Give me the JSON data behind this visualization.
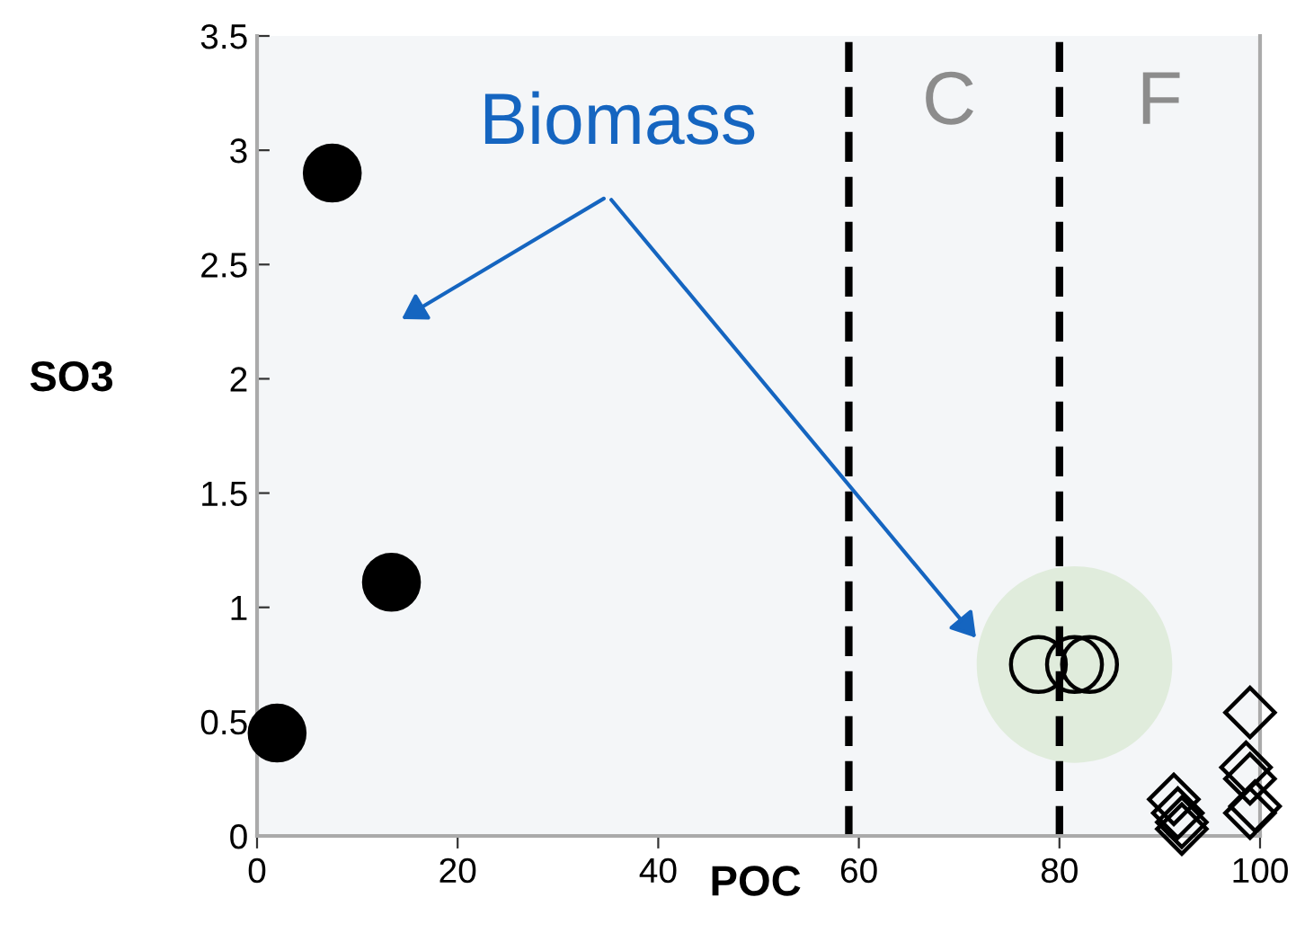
{
  "chart_data": {
    "type": "scatter",
    "xlabel": "POC",
    "ylabel": "SO3",
    "xlim": [
      0,
      100
    ],
    "ylim": [
      0,
      3.5
    ],
    "xticks": [
      0,
      20,
      40,
      60,
      80,
      100
    ],
    "yticks": [
      0,
      0.5,
      1,
      1.5,
      2,
      2.5,
      3,
      3.5
    ],
    "grid": false,
    "series": [
      {
        "color": "#000000",
        "marker": "circle",
        "x": [
          2,
          7.5,
          13.4
        ],
        "values": [
          0.45,
          2.9,
          1.11
        ]
      },
      {
        "color": "#000000",
        "marker": "circle",
        "x": [
          77.9,
          81.5,
          83
        ],
        "values": [
          0.75,
          0.75,
          0.75
        ]
      },
      {
        "color": "#000000",
        "marker": "diamond",
        "x": [
          91.4,
          91.8,
          92.2,
          92.2,
          99,
          98.6,
          99,
          99.5,
          99
        ],
        "values": [
          0.16,
          0.1,
          0.06,
          0.03,
          0.54,
          0.3,
          0.25,
          0.13,
          0.1
        ]
      }
    ],
    "ref_lines": [
      {
        "axis": "x",
        "value": 59,
        "label": "C",
        "color": "#000000",
        "line_style": "dashed"
      },
      {
        "axis": "x",
        "value": 80,
        "label": "F",
        "color": "#000000",
        "line_style": "dashed"
      }
    ],
    "annotations": [
      "Biomass"
    ]
  }
}
